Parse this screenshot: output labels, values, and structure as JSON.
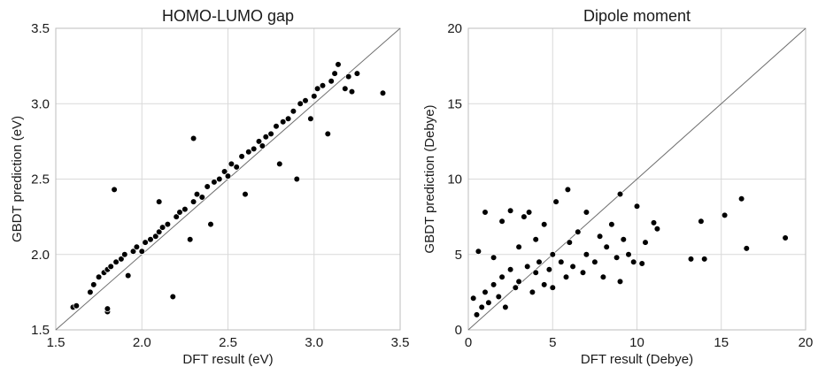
{
  "chart_data": [
    {
      "type": "scatter",
      "title": "HOMO-LUMO gap",
      "xlabel": "DFT result (eV)",
      "ylabel": "GBDT prediction (eV)",
      "xlim": [
        1.5,
        3.5
      ],
      "ylim": [
        1.5,
        3.5
      ],
      "xticks": [
        1.5,
        2.0,
        2.5,
        3.0,
        3.5
      ],
      "yticks": [
        1.5,
        2.0,
        2.5,
        3.0,
        3.5
      ],
      "xtick_labels": [
        "1.5",
        "2.0",
        "2.5",
        "3.0",
        "3.5"
      ],
      "ytick_labels": [
        "1.5",
        "2.0",
        "2.5",
        "3.0",
        "3.5"
      ],
      "grid": true,
      "reference_line": "y = x",
      "points": [
        [
          1.6,
          1.65
        ],
        [
          1.62,
          1.66
        ],
        [
          1.7,
          1.75
        ],
        [
          1.72,
          1.8
        ],
        [
          1.75,
          1.85
        ],
        [
          1.78,
          1.88
        ],
        [
          1.8,
          1.9
        ],
        [
          1.8,
          1.62
        ],
        [
          1.8,
          1.64
        ],
        [
          1.82,
          1.92
        ],
        [
          1.84,
          2.43
        ],
        [
          1.85,
          1.95
        ],
        [
          1.88,
          1.97
        ],
        [
          1.9,
          2.0
        ],
        [
          1.92,
          1.86
        ],
        [
          1.95,
          2.02
        ],
        [
          1.97,
          2.05
        ],
        [
          2.0,
          2.02
        ],
        [
          2.02,
          2.08
        ],
        [
          2.05,
          2.1
        ],
        [
          2.08,
          2.12
        ],
        [
          2.1,
          2.15
        ],
        [
          2.1,
          2.35
        ],
        [
          2.12,
          2.18
        ],
        [
          2.15,
          2.2
        ],
        [
          2.18,
          1.72
        ],
        [
          2.2,
          2.25
        ],
        [
          2.22,
          2.28
        ],
        [
          2.25,
          2.3
        ],
        [
          2.28,
          2.1
        ],
        [
          2.3,
          2.35
        ],
        [
          2.3,
          2.77
        ],
        [
          2.32,
          2.4
        ],
        [
          2.35,
          2.38
        ],
        [
          2.38,
          2.45
        ],
        [
          2.4,
          2.2
        ],
        [
          2.42,
          2.48
        ],
        [
          2.45,
          2.5
        ],
        [
          2.48,
          2.55
        ],
        [
          2.5,
          2.52
        ],
        [
          2.52,
          2.6
        ],
        [
          2.55,
          2.58
        ],
        [
          2.58,
          2.65
        ],
        [
          2.6,
          2.4
        ],
        [
          2.62,
          2.68
        ],
        [
          2.65,
          2.7
        ],
        [
          2.68,
          2.75
        ],
        [
          2.7,
          2.72
        ],
        [
          2.72,
          2.78
        ],
        [
          2.75,
          2.8
        ],
        [
          2.78,
          2.85
        ],
        [
          2.8,
          2.6
        ],
        [
          2.82,
          2.88
        ],
        [
          2.85,
          2.9
        ],
        [
          2.88,
          2.95
        ],
        [
          2.9,
          2.5
        ],
        [
          2.92,
          3.0
        ],
        [
          2.95,
          3.02
        ],
        [
          2.98,
          2.9
        ],
        [
          3.0,
          3.05
        ],
        [
          3.02,
          3.1
        ],
        [
          3.05,
          3.12
        ],
        [
          3.08,
          2.8
        ],
        [
          3.1,
          3.15
        ],
        [
          3.12,
          3.2
        ],
        [
          3.14,
          3.26
        ],
        [
          3.18,
          3.1
        ],
        [
          3.2,
          3.18
        ],
        [
          3.22,
          3.08
        ],
        [
          3.25,
          3.2
        ],
        [
          3.4,
          3.07
        ]
      ]
    },
    {
      "type": "scatter",
      "title": "Dipole moment",
      "xlabel": "DFT result (Debye)",
      "ylabel": "GBDT prediction (Debye)",
      "xlim": [
        0,
        20
      ],
      "ylim": [
        0,
        20
      ],
      "xticks": [
        0,
        5,
        10,
        15,
        20
      ],
      "yticks": [
        0,
        5,
        10,
        15,
        20
      ],
      "xtick_labels": [
        "0",
        "5",
        "10",
        "15",
        "20"
      ],
      "ytick_labels": [
        "0",
        "5",
        "10",
        "15",
        "20"
      ],
      "grid": true,
      "reference_line": "y = x",
      "points": [
        [
          0.3,
          2.1
        ],
        [
          0.5,
          1.0
        ],
        [
          0.6,
          5.2
        ],
        [
          0.8,
          1.5
        ],
        [
          1.0,
          7.8
        ],
        [
          1.0,
          2.5
        ],
        [
          1.2,
          1.8
        ],
        [
          1.5,
          3.0
        ],
        [
          1.5,
          4.8
        ],
        [
          1.8,
          2.2
        ],
        [
          2.0,
          7.2
        ],
        [
          2.0,
          3.5
        ],
        [
          2.2,
          1.5
        ],
        [
          2.5,
          4.0
        ],
        [
          2.5,
          7.9
        ],
        [
          2.8,
          2.8
        ],
        [
          3.0,
          5.5
        ],
        [
          3.0,
          3.2
        ],
        [
          3.3,
          7.5
        ],
        [
          3.5,
          4.2
        ],
        [
          3.6,
          7.8
        ],
        [
          3.8,
          2.5
        ],
        [
          4.0,
          6.0
        ],
        [
          4.0,
          3.8
        ],
        [
          4.2,
          4.5
        ],
        [
          4.5,
          3.0
        ],
        [
          4.5,
          7.0
        ],
        [
          4.8,
          4.0
        ],
        [
          5.0,
          5.0
        ],
        [
          5.0,
          2.8
        ],
        [
          5.2,
          8.5
        ],
        [
          5.5,
          4.5
        ],
        [
          5.8,
          3.5
        ],
        [
          5.9,
          9.3
        ],
        [
          6.0,
          5.8
        ],
        [
          6.2,
          4.2
        ],
        [
          6.5,
          6.5
        ],
        [
          6.8,
          3.8
        ],
        [
          7.0,
          5.0
        ],
        [
          7.0,
          7.8
        ],
        [
          7.5,
          4.5
        ],
        [
          7.8,
          6.2
        ],
        [
          8.0,
          3.5
        ],
        [
          8.2,
          5.5
        ],
        [
          8.5,
          7.0
        ],
        [
          8.8,
          4.8
        ],
        [
          9.0,
          9.0
        ],
        [
          9.0,
          3.2
        ],
        [
          9.2,
          6.0
        ],
        [
          9.5,
          5.0
        ],
        [
          9.8,
          4.5
        ],
        [
          10.0,
          8.2
        ],
        [
          10.3,
          4.4
        ],
        [
          10.5,
          5.8
        ],
        [
          11.0,
          7.1
        ],
        [
          11.2,
          6.7
        ],
        [
          13.2,
          4.7
        ],
        [
          13.8,
          7.2
        ],
        [
          14.0,
          4.7
        ],
        [
          15.2,
          7.6
        ],
        [
          16.2,
          8.7
        ],
        [
          16.5,
          5.4
        ],
        [
          18.8,
          6.1
        ]
      ]
    }
  ]
}
